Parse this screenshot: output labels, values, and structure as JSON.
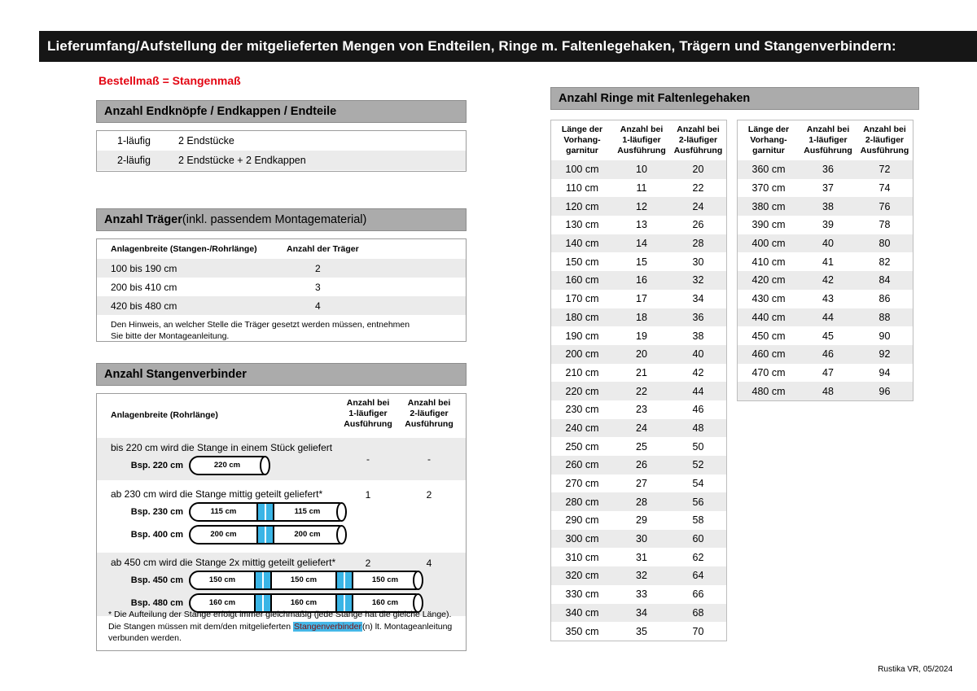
{
  "page": {
    "header": "Lieferumfang/Aufstellung der mitgelieferten Mengen von Endteilen, Ringe m. Faltenlegehaken, Trägern und Stangenverbindern:",
    "subtitle": "Bestellmaß = Stangenmaß",
    "footer": "Rustika VR, 05/2024"
  },
  "colors": {
    "accent_red": "#e30613",
    "highlight_blue": "#45b8e8",
    "shade_gray": "#ebebeb",
    "bar_gray": "#ababab",
    "header_black": "#161616",
    "connector_blue": "#3ab5e6"
  },
  "endteile": {
    "title": "Anzahl Endknöpfe / Endkappen / Endteile",
    "rows": [
      {
        "label": "1-läufig",
        "value": "2 Endstücke"
      },
      {
        "label": "2-läufig",
        "value": "2 Endstücke + 2 Endkappen"
      }
    ]
  },
  "traeger": {
    "title": "Anzahl Träger",
    "title_suffix": " (inkl. passendem Montagematerial)",
    "col1": "Anlagenbreite (Stangen-/Rohrlänge)",
    "col2": "Anzahl der Träger",
    "rows": [
      {
        "breite": "100 bis 190 cm",
        "anzahl": "2"
      },
      {
        "breite": "200 bis 410 cm",
        "anzahl": "3"
      },
      {
        "breite": "420 bis 480 cm",
        "anzahl": "4"
      }
    ],
    "note": "Den Hinweis, an welcher Stelle die Träger gesetzt werden müssen, entnehmen Sie bitte der Montageanleitung."
  },
  "verbinder": {
    "title": "Anzahl Stangenverbinder",
    "col1": "Anlagenbreite (Rohrlänge)",
    "col2": "Anzahl bei\n1-läufiger\nAusführung",
    "col3": "Anzahl bei\n2-läufiger\nAusführung",
    "groups": [
      {
        "text": "bis 220 cm wird die Stange in einem Stück geliefert",
        "c1": "-",
        "c2": "-",
        "examples": [
          {
            "label": "Bsp. 220 cm",
            "segments": [
              "220 cm"
            ]
          }
        ]
      },
      {
        "text": "ab 230 cm wird die Stange mittig geteilt geliefert*",
        "c1": "1",
        "c2": "2",
        "examples": [
          {
            "label": "Bsp. 230 cm",
            "segments": [
              "115 cm",
              "115 cm"
            ]
          },
          {
            "label": "Bsp. 400 cm",
            "segments": [
              "200 cm",
              "200 cm"
            ]
          }
        ]
      },
      {
        "text": "ab 450 cm wird die Stange 2x mittig geteilt geliefert*",
        "c1": "2",
        "c2": "4",
        "examples": [
          {
            "label": "Bsp. 450 cm",
            "segments": [
              "150 cm",
              "150 cm",
              "150 cm"
            ]
          },
          {
            "label": "Bsp. 480 cm",
            "segments": [
              "160 cm",
              "160 cm",
              "160 cm"
            ]
          }
        ]
      }
    ],
    "footnote_pre": "* Die Aufteilung der Stange erfolgt immer gleichmäßig (jede Stange hat die gleiche Länge). Die Stangen müssen mit dem/den mitgelieferten ",
    "footnote_highlight": "Stangenverbinder",
    "footnote_post": "(n) lt. Montageanleitung verbunden werden."
  },
  "ringe": {
    "title": "Anzahl Ringe mit Faltenlegehaken",
    "col1": "Länge der\nVorhang-\ngarnitur",
    "col2": "Anzahl bei\n1-läufiger\nAusführung",
    "col3": "Anzahl bei\n2-läufiger\nAusführung",
    "rows_left": [
      [
        "100 cm",
        "10",
        "20"
      ],
      [
        "110 cm",
        "11",
        "22"
      ],
      [
        "120 cm",
        "12",
        "24"
      ],
      [
        "130 cm",
        "13",
        "26"
      ],
      [
        "140 cm",
        "14",
        "28"
      ],
      [
        "150 cm",
        "15",
        "30"
      ],
      [
        "160 cm",
        "16",
        "32"
      ],
      [
        "170 cm",
        "17",
        "34"
      ],
      [
        "180 cm",
        "18",
        "36"
      ],
      [
        "190 cm",
        "19",
        "38"
      ],
      [
        "200 cm",
        "20",
        "40"
      ],
      [
        "210 cm",
        "21",
        "42"
      ],
      [
        "220 cm",
        "22",
        "44"
      ],
      [
        "230 cm",
        "23",
        "46"
      ],
      [
        "240 cm",
        "24",
        "48"
      ],
      [
        "250 cm",
        "25",
        "50"
      ],
      [
        "260 cm",
        "26",
        "52"
      ],
      [
        "270 cm",
        "27",
        "54"
      ],
      [
        "280 cm",
        "28",
        "56"
      ],
      [
        "290 cm",
        "29",
        "58"
      ],
      [
        "300 cm",
        "30",
        "60"
      ],
      [
        "310 cm",
        "31",
        "62"
      ],
      [
        "320 cm",
        "32",
        "64"
      ],
      [
        "330 cm",
        "33",
        "66"
      ],
      [
        "340 cm",
        "34",
        "68"
      ],
      [
        "350 cm",
        "35",
        "70"
      ]
    ],
    "rows_right": [
      [
        "360 cm",
        "36",
        "72"
      ],
      [
        "370 cm",
        "37",
        "74"
      ],
      [
        "380 cm",
        "38",
        "76"
      ],
      [
        "390 cm",
        "39",
        "78"
      ],
      [
        "400 cm",
        "40",
        "80"
      ],
      [
        "410 cm",
        "41",
        "82"
      ],
      [
        "420 cm",
        "42",
        "84"
      ],
      [
        "430 cm",
        "43",
        "86"
      ],
      [
        "440 cm",
        "44",
        "88"
      ],
      [
        "450 cm",
        "45",
        "90"
      ],
      [
        "460 cm",
        "46",
        "92"
      ],
      [
        "470 cm",
        "47",
        "94"
      ],
      [
        "480 cm",
        "48",
        "96"
      ]
    ]
  }
}
